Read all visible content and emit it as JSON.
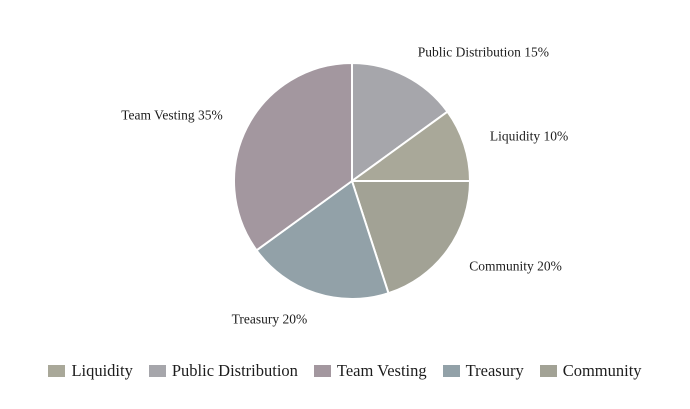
{
  "page": {
    "background": "#ffffff",
    "text_color": "#1d1d1d"
  },
  "chart_data": {
    "type": "pie",
    "title": "",
    "start_angle_deg": 0,
    "direction": "clockwise",
    "label_format": "{label} {value}%",
    "slices": [
      {
        "label": "Public Distribution",
        "value": 15,
        "display_label": "Public Distribution 15%",
        "color": "#a6a6ab"
      },
      {
        "label": "Liquidity",
        "value": 10,
        "display_label": "Liquidity 10%",
        "color": "#a9a899"
      },
      {
        "label": "Community",
        "value": 20,
        "display_label": "Community 20%",
        "color": "#a2a295"
      },
      {
        "label": "Treasury",
        "value": 20,
        "display_label": "Treasury 20%",
        "color": "#92a1a8"
      },
      {
        "label": "Team Vesting",
        "value": 35,
        "display_label": "Team Vesting 35%",
        "color": "#a3979f"
      }
    ],
    "legend": {
      "position": "bottom",
      "items": [
        {
          "label": "Liquidity",
          "color": "#a9a899"
        },
        {
          "label": "Public Distribution",
          "color": "#a6a6ab"
        },
        {
          "label": "Team Vesting",
          "color": "#a3979f"
        },
        {
          "label": "Treasury",
          "color": "#92a1a8"
        },
        {
          "label": "Community",
          "color": "#a2a295"
        }
      ]
    }
  }
}
